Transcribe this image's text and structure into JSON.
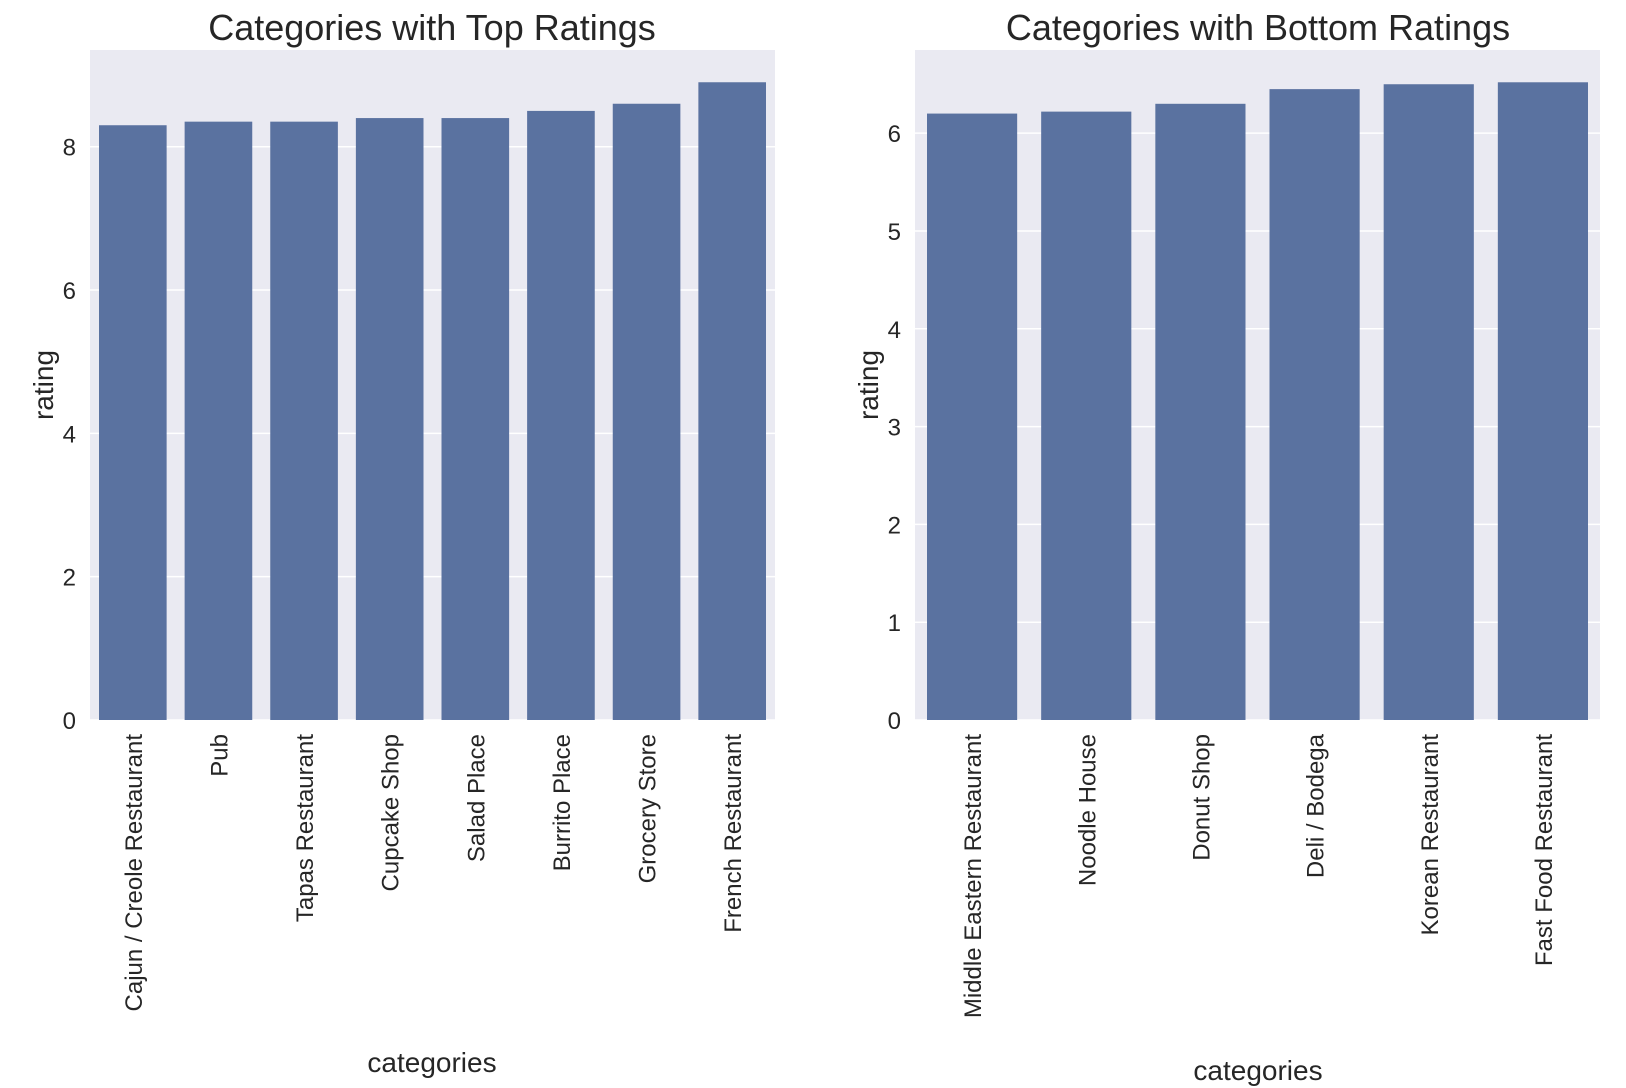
{
  "chart_data": [
    {
      "type": "bar",
      "title": "Categories with Top Ratings",
      "xlabel": "categories",
      "ylabel": "rating",
      "ylim": [
        0,
        9.35
      ],
      "yticks": [
        0,
        2,
        4,
        6,
        8
      ],
      "grid": true,
      "bar_color": "#5a72a0",
      "background_color": "#eaeaf2",
      "categories": [
        "Cajun / Creole Restaurant",
        "Pub",
        "Tapas Restaurant",
        "Cupcake Shop",
        "Salad Place",
        "Burrito Place",
        "Grocery Store",
        "French Restaurant"
      ],
      "values": [
        8.3,
        8.35,
        8.35,
        8.4,
        8.4,
        8.5,
        8.6,
        8.9
      ]
    },
    {
      "type": "bar",
      "title": "Categories with Bottom Ratings",
      "xlabel": "categories",
      "ylabel": "rating",
      "ylim": [
        0,
        6.85
      ],
      "yticks": [
        0,
        1,
        2,
        3,
        4,
        5,
        6
      ],
      "grid": true,
      "bar_color": "#5a72a0",
      "background_color": "#eaeaf2",
      "categories": [
        "Middle Eastern Restaurant",
        "Noodle House",
        "Donut Shop",
        "Deli / Bodega",
        "Korean Restaurant",
        "Fast Food Restaurant"
      ],
      "values": [
        6.2,
        6.22,
        6.3,
        6.45,
        6.5,
        6.52
      ]
    }
  ]
}
